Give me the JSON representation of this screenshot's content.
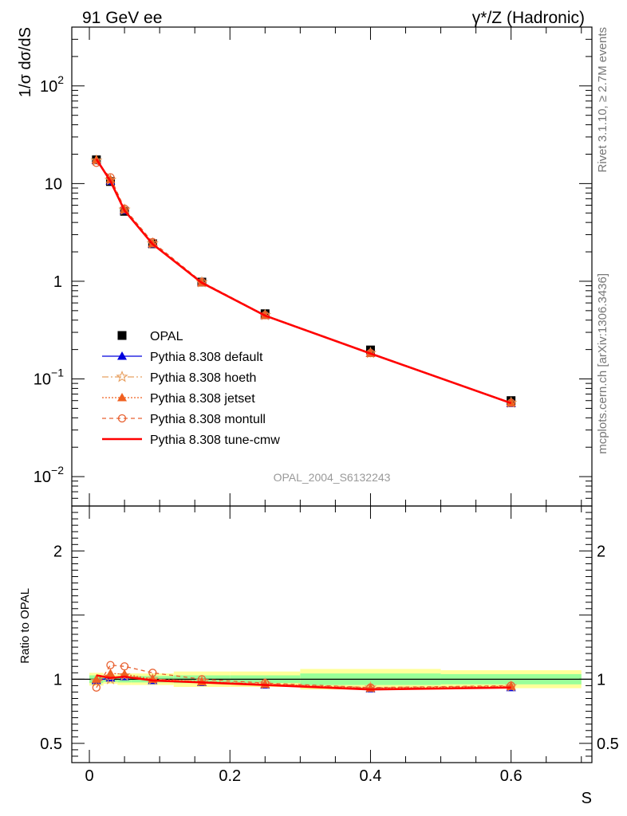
{
  "header": {
    "left": "91 GeV ee",
    "right": "γ*/Z (Hadronic)"
  },
  "side_text": {
    "rivet": "Rivet 3.1.10, ≥ 2.7M events",
    "mcplots": "mcplots.cern.ch [arXiv:1306.3436]"
  },
  "analysis_label": "OPAL_2004_S6132243",
  "chart_data": [
    {
      "type": "line",
      "panel": "main",
      "ylabel": "1/σ dσ/dS",
      "yscale": "log",
      "ylim": [
        0.005,
        400
      ],
      "xlim": [
        -0.025,
        0.715
      ],
      "y_tick_labels": [
        {
          "base": "10",
          "exp": "−2",
          "value": 0.01
        },
        {
          "base": "10",
          "exp": "−1",
          "value": 0.1
        },
        {
          "base": "1",
          "exp": "",
          "value": 1
        },
        {
          "base": "10",
          "exp": "",
          "value": 10
        },
        {
          "base": "10",
          "exp": "2",
          "value": 100
        }
      ],
      "legend_position": "lower-left",
      "x": [
        0.01,
        0.03,
        0.05,
        0.09,
        0.16,
        0.25,
        0.4,
        0.6
      ],
      "series": [
        {
          "name": "OPAL",
          "style": "data",
          "color": "#000000",
          "values": [
            17.5,
            10.5,
            5.2,
            2.42,
            0.98,
            0.465,
            0.198,
            0.06
          ]
        },
        {
          "name": "Pythia 8.308 default",
          "style": "default",
          "color": "#0000dd",
          "values": [
            17.3,
            10.6,
            5.3,
            2.4,
            0.97,
            0.445,
            0.183,
            0.056
          ]
        },
        {
          "name": "Pythia 8.308 hoeth",
          "style": "hoeth",
          "color": "#e8a060",
          "values": [
            17.2,
            10.9,
            5.4,
            2.44,
            0.975,
            0.45,
            0.184,
            0.057
          ]
        },
        {
          "name": "Pythia 8.308 jetset",
          "style": "jetset",
          "color": "#f06020",
          "values": [
            17.5,
            11.0,
            5.4,
            2.42,
            0.965,
            0.448,
            0.183,
            0.057
          ]
        },
        {
          "name": "Pythia 8.308 montull",
          "style": "montull",
          "color": "#e86030",
          "values": [
            16.3,
            11.6,
            5.55,
            2.52,
            0.985,
            0.45,
            0.184,
            0.057
          ]
        },
        {
          "name": "Pythia 8.308 tune-cmw",
          "style": "cmw",
          "color": "#ff0000",
          "values": [
            17.8,
            10.6,
            5.3,
            2.4,
            0.965,
            0.445,
            0.182,
            0.0565
          ]
        }
      ]
    },
    {
      "type": "line",
      "panel": "ratio",
      "xlabel": "S",
      "ylabel": "Ratio to OPAL",
      "ylim": [
        0.35,
        2.35
      ],
      "y_ticks": [
        0.5,
        1,
        2
      ],
      "x_ticks": [
        0,
        0.2,
        0.4,
        0.6
      ],
      "xlim": [
        -0.025,
        0.715
      ],
      "error_bands": [
        {
          "x0": 0.0,
          "x1": 0.02,
          "green": [
            0.97,
            1.03
          ],
          "yellow": [
            0.95,
            1.05
          ]
        },
        {
          "x0": 0.02,
          "x1": 0.04,
          "green": [
            0.98,
            1.02
          ],
          "yellow": [
            0.965,
            1.035
          ]
        },
        {
          "x0": 0.04,
          "x1": 0.06,
          "green": [
            0.975,
            1.025
          ],
          "yellow": [
            0.955,
            1.045
          ]
        },
        {
          "x0": 0.06,
          "x1": 0.12,
          "green": [
            0.975,
            1.025
          ],
          "yellow": [
            0.955,
            1.045
          ]
        },
        {
          "x0": 0.12,
          "x1": 0.2,
          "green": [
            0.97,
            1.03
          ],
          "yellow": [
            0.94,
            1.06
          ]
        },
        {
          "x0": 0.2,
          "x1": 0.3,
          "green": [
            0.97,
            1.03
          ],
          "yellow": [
            0.94,
            1.06
          ]
        },
        {
          "x0": 0.3,
          "x1": 0.5,
          "green": [
            0.955,
            1.045
          ],
          "yellow": [
            0.92,
            1.08
          ]
        },
        {
          "x0": 0.5,
          "x1": 0.7,
          "green": [
            0.96,
            1.04
          ],
          "yellow": [
            0.93,
            1.07
          ]
        }
      ],
      "x": [
        0.01,
        0.03,
        0.05,
        0.09,
        0.16,
        0.25,
        0.4,
        0.6
      ],
      "series": [
        {
          "name": "Pythia 8.308 default",
          "style": "default",
          "color": "#0000dd",
          "values": [
            0.99,
            1.01,
            1.02,
            0.99,
            0.975,
            0.955,
            0.925,
            0.935
          ]
        },
        {
          "name": "Pythia 8.308 hoeth",
          "style": "hoeth",
          "color": "#e8a060",
          "values": [
            0.985,
            1.0,
            1.03,
            1.0,
            0.985,
            0.965,
            0.935,
            0.945
          ]
        },
        {
          "name": "Pythia 8.308 jetset",
          "style": "jetset",
          "color": "#f06020",
          "values": [
            1.0,
            1.045,
            1.04,
            1.0,
            0.98,
            0.96,
            0.93,
            0.945
          ]
        },
        {
          "name": "Pythia 8.308 montull",
          "style": "montull",
          "color": "#e86030",
          "values": [
            0.935,
            1.11,
            1.1,
            1.05,
            1.0,
            0.97,
            0.935,
            0.95
          ]
        },
        {
          "name": "Pythia 8.308 tune-cmw",
          "style": "cmw",
          "color": "#ff0000",
          "values": [
            1.03,
            1.01,
            1.02,
            0.99,
            0.975,
            0.955,
            0.92,
            0.935
          ]
        }
      ]
    }
  ]
}
